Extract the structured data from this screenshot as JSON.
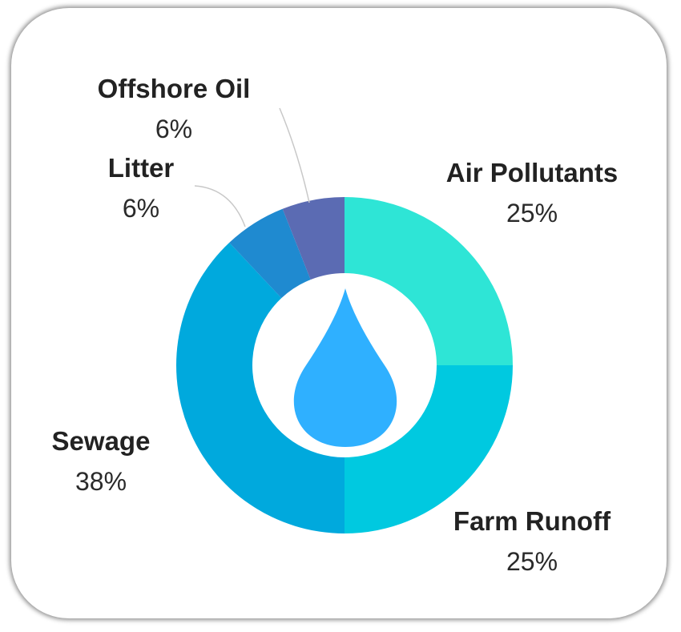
{
  "chart_data": {
    "type": "pie",
    "style": "donut",
    "center_icon": "water-drop-icon",
    "slices": [
      {
        "label": "Air Pollutants",
        "percent_label": "25%",
        "value": 25,
        "color": "#2ee5d6"
      },
      {
        "label": "Farm Runoff",
        "percent_label": "25%",
        "value": 25,
        "color": "#00c9e0"
      },
      {
        "label": "Sewage",
        "percent_label": "38%",
        "value": 38,
        "color": "#00a9dd"
      },
      {
        "label": "Litter",
        "percent_label": "6%",
        "value": 6,
        "color": "#1f8ad0"
      },
      {
        "label": "Offshore Oil",
        "percent_label": "6%",
        "value": 6,
        "color": "#5b6bb3"
      }
    ],
    "icon_color": "#2fb0ff"
  }
}
